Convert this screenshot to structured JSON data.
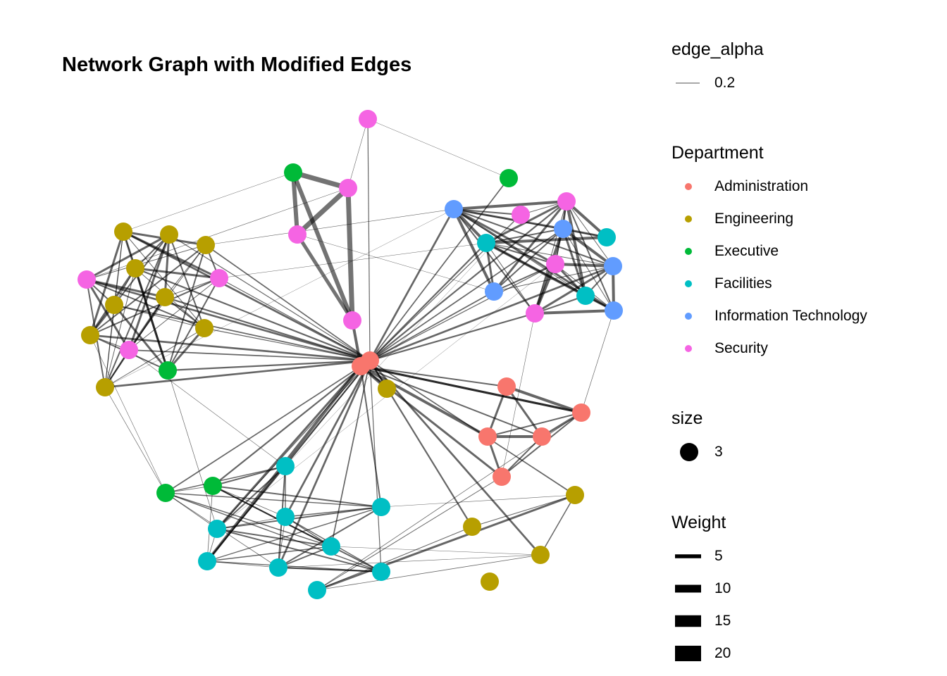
{
  "title": "Network Graph with Modified Edges",
  "legends": {
    "edge_alpha": {
      "title": "edge_alpha",
      "entries": [
        "0.2"
      ]
    },
    "department": {
      "title": "Department",
      "entries": [
        {
          "label": "Administration",
          "color": "#F8766D"
        },
        {
          "label": "Engineering",
          "color": "#B79F00"
        },
        {
          "label": "Executive",
          "color": "#00BA38"
        },
        {
          "label": "Facilities",
          "color": "#00BFC4"
        },
        {
          "label": "Information Technology",
          "color": "#619CFF"
        },
        {
          "label": "Security",
          "color": "#F564E3"
        }
      ]
    },
    "size": {
      "title": "size",
      "entries": [
        "3"
      ]
    },
    "weight": {
      "title": "Weight",
      "entries": [
        {
          "label": "5",
          "value": 5
        },
        {
          "label": "10",
          "value": 10
        },
        {
          "label": "15",
          "value": 15
        },
        {
          "label": "20",
          "value": 20
        }
      ]
    }
  }
}
